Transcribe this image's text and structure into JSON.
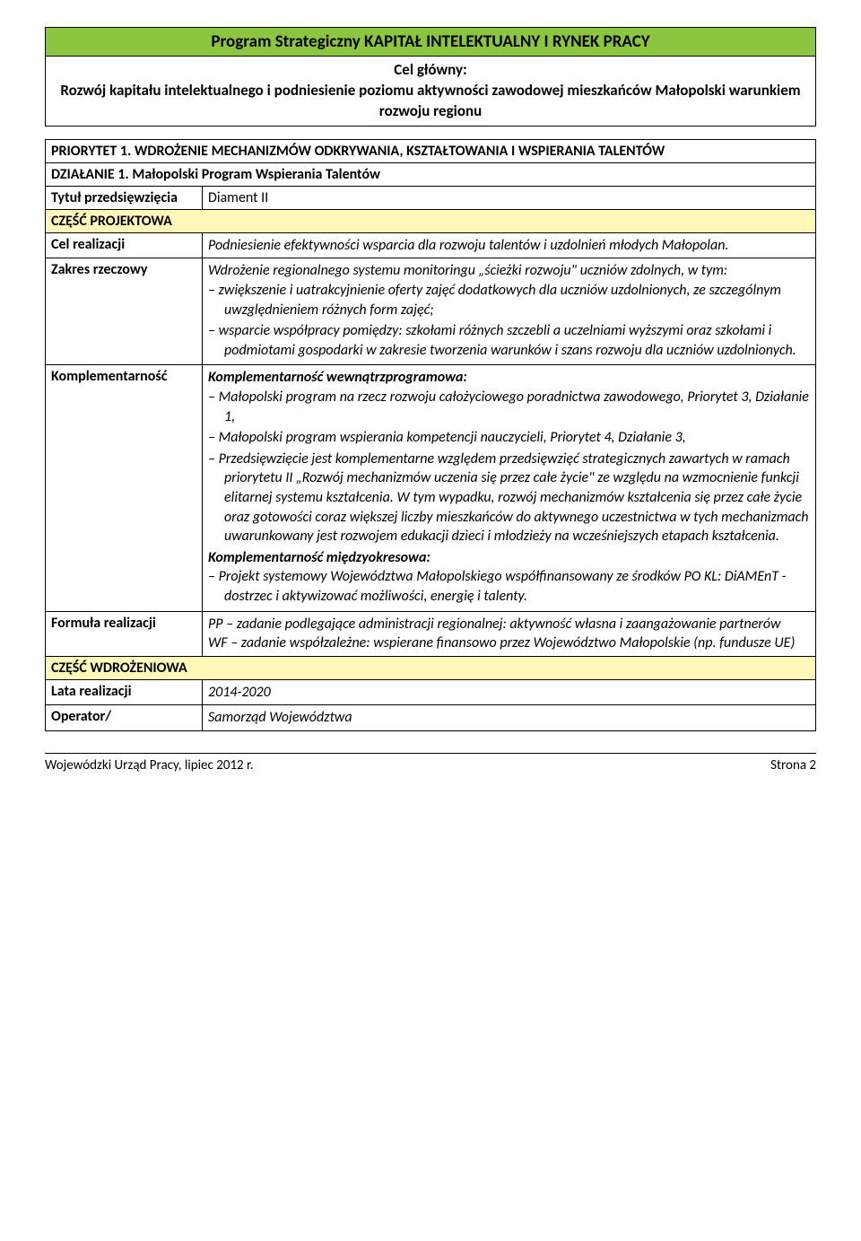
{
  "colors": {
    "title_bg": "#8cc63f",
    "section_bg": "#fff8b8",
    "border": "#000000",
    "page_bg": "#ffffff"
  },
  "header": {
    "program_title": "Program Strategiczny KAPITAŁ INTELEKTUALNY I RYNEK PRACY",
    "main_goal_label": "Cel główny:",
    "main_goal_text": "Rozwój kapitału intelektualnego i podniesienie poziomu aktywności zawodowej mieszkańców Małopolski warunkiem rozwoju regionu"
  },
  "priority": "PRIORYTET 1. WDROŻENIE MECHANIZMÓW ODKRYWANIA, KSZTAŁTOWANIA I WSPIERANIA TALENTÓW",
  "action": "DZIAŁANIE 1. Małopolski Program Wspierania Talentów",
  "rows": {
    "tytul": {
      "label": "Tytuł przedsięwzięcia",
      "value": "Diament II"
    }
  },
  "section_project": "CZĘŚĆ PROJEKTOWA",
  "cel": {
    "label": "Cel realizacji",
    "value": "Podniesienie efektywności wsparcia dla rozwoju talentów i uzdolnień młodych Małopolan."
  },
  "zakres": {
    "label": "Zakres rzeczowy",
    "intro": "Wdrożenie regionalnego systemu monitoringu „ścieżki rozwoju\" uczniów zdolnych, w tym:",
    "items": [
      "zwiększenie i uatrakcyjnienie oferty zajęć dodatkowych dla uczniów uzdolnionych, ze szczególnym uwzględnieniem różnych form zajęć;",
      "wsparcie współpracy pomiędzy: szkołami różnych szczebli a uczelniami wyższymi oraz szkołami i podmiotami gospodarki w zakresie tworzenia warunków i szans rozwoju dla uczniów uzdolnionych."
    ]
  },
  "komp": {
    "label": "Komplementarność",
    "intra_label": "Komplementarność wewnątrzprogramowa:",
    "intra_items": [
      "Małopolski program na rzecz rozwoju całożyciowego poradnictwa zawodowego, Priorytet 3, Działanie 1,",
      "Małopolski program wspierania kompetencji nauczycieli, Priorytet 4, Działanie 3,",
      "Przedsięwzięcie jest komplementarne względem przedsięwzięć strategicznych zawartych w ramach priorytetu II „Rozwój mechanizmów uczenia się przez całe życie\" ze względu na wzmocnienie funkcji elitarnej systemu kształcenia. W tym wypadku, rozwój mechanizmów kształcenia się przez całe życie oraz gotowości coraz większej liczby mieszkańców do aktywnego uczestnictwa w tych mechanizmach uwarunkowany jest rozwojem edukacji dzieci i młodzieży na wcześniejszych etapach kształcenia."
    ],
    "inter_label": "Komplementarność międzyokresowa:",
    "inter_items": [
      "Projekt systemowy Województwa Małopolskiego współfinansowany ze środków PO KL: DiAMEnT - dostrzec i aktywizować możliwości, energię i talenty."
    ]
  },
  "formula": {
    "label": "Formuła realizacji",
    "line1": "PP – zadanie podlegające administracji regionalnej: aktywność własna i zaangażowanie partnerów",
    "line2": "WF – zadanie współzależne: wspierane finansowo przez Województwo Małopolskie (np. fundusze UE)"
  },
  "section_impl": "CZĘŚĆ WDROŻENIOWA",
  "lata": {
    "label": "Lata realizacji",
    "value": "2014-2020"
  },
  "operator": {
    "label": "Operator/",
    "value": "Samorząd Województwa"
  },
  "footer": {
    "left": "Wojewódzki Urząd Pracy, lipiec 2012 r.",
    "right": "Strona 2"
  }
}
